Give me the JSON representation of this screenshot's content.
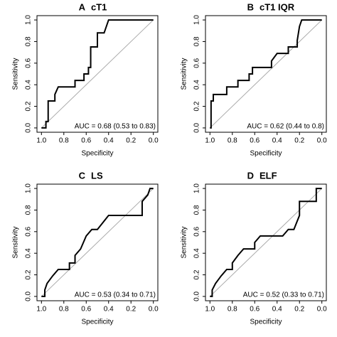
{
  "chart_data": [
    {
      "type": "line",
      "label": "A",
      "title": "cT1",
      "xlabel": "Specificity",
      "ylabel": "Sensitivity",
      "annotation": "AUC = 0.68 (0.53 to 0.83)",
      "color": "#000000",
      "x": [
        1,
        0.96,
        0.96,
        0.94,
        0.94,
        0.88,
        0.88,
        0.85,
        0.7,
        0.7,
        0.62,
        0.62,
        0.58,
        0.58,
        0.56,
        0.56,
        0.5,
        0.5,
        0.44,
        0.4,
        0
      ],
      "values": [
        0,
        0,
        0.06,
        0.06,
        0.25,
        0.25,
        0.31,
        0.38,
        0.38,
        0.44,
        0.44,
        0.5,
        0.5,
        0.56,
        0.56,
        0.75,
        0.75,
        0.88,
        0.88,
        1,
        1
      ],
      "xlim": [
        1.04,
        -0.04
      ],
      "ylim": [
        -0.04,
        1.04
      ],
      "xticks": [
        {
          "value": 1,
          "label": "1.0"
        },
        {
          "value": 0.8,
          "label": "0.8"
        },
        {
          "value": 0.6,
          "label": "0.6"
        },
        {
          "value": 0.4,
          "label": "0.4"
        },
        {
          "value": 0.2,
          "label": "0.2"
        },
        {
          "value": 0,
          "label": "0.0"
        }
      ],
      "yticks": [
        {
          "value": 0,
          "label": "0.0"
        },
        {
          "value": 0.2,
          "label": "0.2"
        },
        {
          "value": 0.4,
          "label": "0.4"
        },
        {
          "value": 0.6,
          "label": "0.6"
        },
        {
          "value": 0.8,
          "label": "0.8"
        },
        {
          "value": 1,
          "label": "1.0"
        }
      ]
    },
    {
      "type": "line",
      "label": "B",
      "title": "cT1 IQR",
      "xlabel": "Specificity",
      "ylabel": "Sensitivity",
      "annotation": "AUC = 0.62 (0.44 to 0.8)",
      "color": "#000000",
      "x": [
        1,
        0.99,
        0.99,
        0.97,
        0.97,
        0.85,
        0.85,
        0.75,
        0.75,
        0.65,
        0.65,
        0.62,
        0.62,
        0.45,
        0.45,
        0.4,
        0.3,
        0.3,
        0.22,
        0.22,
        0.2,
        0.18,
        0
      ],
      "values": [
        0,
        0,
        0.25,
        0.25,
        0.31,
        0.31,
        0.38,
        0.38,
        0.44,
        0.44,
        0.5,
        0.5,
        0.56,
        0.56,
        0.62,
        0.69,
        0.69,
        0.75,
        0.75,
        0.81,
        0.94,
        1,
        1
      ],
      "xlim": [
        1.04,
        -0.04
      ],
      "ylim": [
        -0.04,
        1.04
      ],
      "xticks": [
        {
          "value": 1,
          "label": "1.0"
        },
        {
          "value": 0.8,
          "label": "0.8"
        },
        {
          "value": 0.6,
          "label": "0.6"
        },
        {
          "value": 0.4,
          "label": "0.4"
        },
        {
          "value": 0.2,
          "label": "0.2"
        },
        {
          "value": 0,
          "label": "0.0"
        }
      ],
      "yticks": [
        {
          "value": 0,
          "label": "0.0"
        },
        {
          "value": 0.2,
          "label": "0.2"
        },
        {
          "value": 0.4,
          "label": "0.4"
        },
        {
          "value": 0.6,
          "label": "0.6"
        },
        {
          "value": 0.8,
          "label": "0.8"
        },
        {
          "value": 1,
          "label": "1.0"
        }
      ]
    },
    {
      "type": "line",
      "label": "C",
      "title": "LS",
      "xlabel": "Specificity",
      "ylabel": "Sensitivity",
      "annotation": "AUC = 0.53 (0.34 to 0.71)",
      "color": "#000000",
      "x": [
        1,
        0.97,
        0.97,
        0.95,
        0.9,
        0.85,
        0.75,
        0.75,
        0.7,
        0.7,
        0.65,
        0.6,
        0.55,
        0.5,
        0.4,
        0.1,
        0.1,
        0.05,
        0.03,
        0
      ],
      "values": [
        0,
        0,
        0.06,
        0.12,
        0.19,
        0.25,
        0.25,
        0.31,
        0.31,
        0.38,
        0.44,
        0.56,
        0.62,
        0.62,
        0.75,
        0.75,
        0.88,
        0.94,
        1,
        1
      ],
      "xlim": [
        1.04,
        -0.04
      ],
      "ylim": [
        -0.04,
        1.04
      ],
      "xticks": [
        {
          "value": 1,
          "label": "1.0"
        },
        {
          "value": 0.8,
          "label": "0.8"
        },
        {
          "value": 0.6,
          "label": "0.6"
        },
        {
          "value": 0.4,
          "label": "0.4"
        },
        {
          "value": 0.2,
          "label": "0.2"
        },
        {
          "value": 0,
          "label": "0.0"
        }
      ],
      "yticks": [
        {
          "value": 0,
          "label": "0.0"
        },
        {
          "value": 0.2,
          "label": "0.2"
        },
        {
          "value": 0.4,
          "label": "0.4"
        },
        {
          "value": 0.6,
          "label": "0.6"
        },
        {
          "value": 0.8,
          "label": "0.8"
        },
        {
          "value": 1,
          "label": "1.0"
        }
      ]
    },
    {
      "type": "line",
      "label": "D",
      "title": "ELF",
      "xlabel": "Specificity",
      "ylabel": "Sensitivity",
      "annotation": "AUC = 0.52 (0.33 to 0.71)",
      "color": "#000000",
      "x": [
        1,
        0.98,
        0.98,
        0.95,
        0.9,
        0.85,
        0.8,
        0.8,
        0.75,
        0.7,
        0.6,
        0.6,
        0.55,
        0.35,
        0.3,
        0.25,
        0.2,
        0.2,
        0.05,
        0.05,
        0
      ],
      "values": [
        0,
        0,
        0.06,
        0.12,
        0.19,
        0.25,
        0.25,
        0.31,
        0.38,
        0.44,
        0.44,
        0.5,
        0.56,
        0.56,
        0.62,
        0.62,
        0.75,
        0.88,
        0.88,
        1,
        1
      ],
      "xlim": [
        1.04,
        -0.04
      ],
      "ylim": [
        -0.04,
        1.04
      ],
      "xticks": [
        {
          "value": 1,
          "label": "1.0"
        },
        {
          "value": 0.8,
          "label": "0.8"
        },
        {
          "value": 0.6,
          "label": "0.6"
        },
        {
          "value": 0.4,
          "label": "0.4"
        },
        {
          "value": 0.2,
          "label": "0.2"
        },
        {
          "value": 0,
          "label": "0.0"
        }
      ],
      "yticks": [
        {
          "value": 0,
          "label": "0.0"
        },
        {
          "value": 0.2,
          "label": "0.2"
        },
        {
          "value": 0.4,
          "label": "0.4"
        },
        {
          "value": 0.6,
          "label": "0.6"
        },
        {
          "value": 0.8,
          "label": "0.8"
        },
        {
          "value": 1,
          "label": "1.0"
        }
      ]
    }
  ]
}
